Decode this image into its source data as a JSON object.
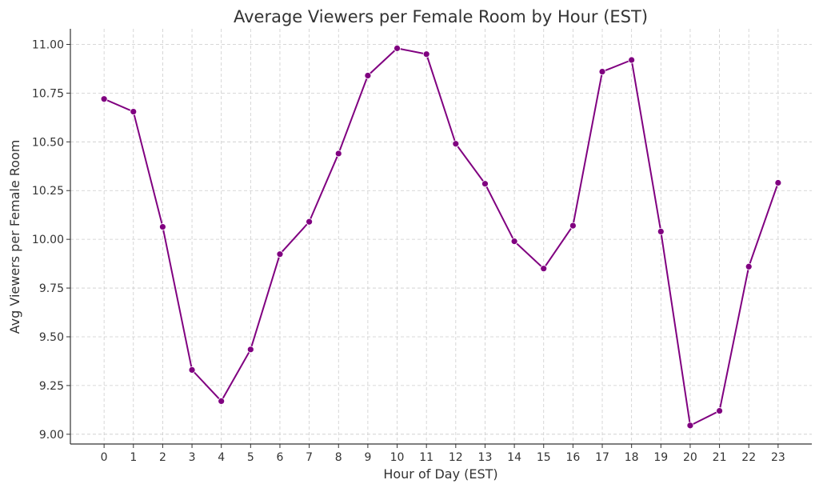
{
  "chart_data": {
    "type": "line",
    "title": "Average Viewers per Female Room by Hour (EST)",
    "xlabel": "Hour of Day (EST)",
    "ylabel": "Avg Viewers per Female Room",
    "x": [
      0,
      1,
      2,
      3,
      4,
      5,
      6,
      7,
      8,
      9,
      10,
      11,
      12,
      13,
      14,
      15,
      16,
      17,
      18,
      19,
      20,
      21,
      22,
      23
    ],
    "series": [
      {
        "name": "Avg Viewers per Female Room",
        "color": "#800080",
        "values": [
          10.72,
          10.655,
          10.064,
          9.33,
          9.17,
          9.435,
          9.924,
          10.09,
          10.44,
          10.84,
          10.98,
          10.95,
          10.49,
          10.285,
          9.99,
          9.85,
          10.07,
          10.86,
          10.92,
          10.04,
          9.045,
          9.12,
          9.86,
          10.29
        ]
      }
    ],
    "xticks": [
      "0",
      "1",
      "2",
      "3",
      "4",
      "5",
      "6",
      "7",
      "8",
      "9",
      "10",
      "11",
      "12",
      "13",
      "14",
      "15",
      "16",
      "17",
      "18",
      "19",
      "20",
      "21",
      "22",
      "23"
    ],
    "yticks": [
      9.0,
      9.25,
      9.5,
      9.75,
      10.0,
      10.25,
      10.5,
      10.75,
      11.0
    ],
    "ytick_labels": [
      "9.00",
      "9.25",
      "9.50",
      "9.75",
      "10.00",
      "10.25",
      "10.50",
      "10.75",
      "11.00"
    ],
    "xlim": [
      -1.15,
      24.15
    ],
    "ylim": [
      8.95,
      11.08
    ],
    "grid": true,
    "marker": "circle"
  }
}
